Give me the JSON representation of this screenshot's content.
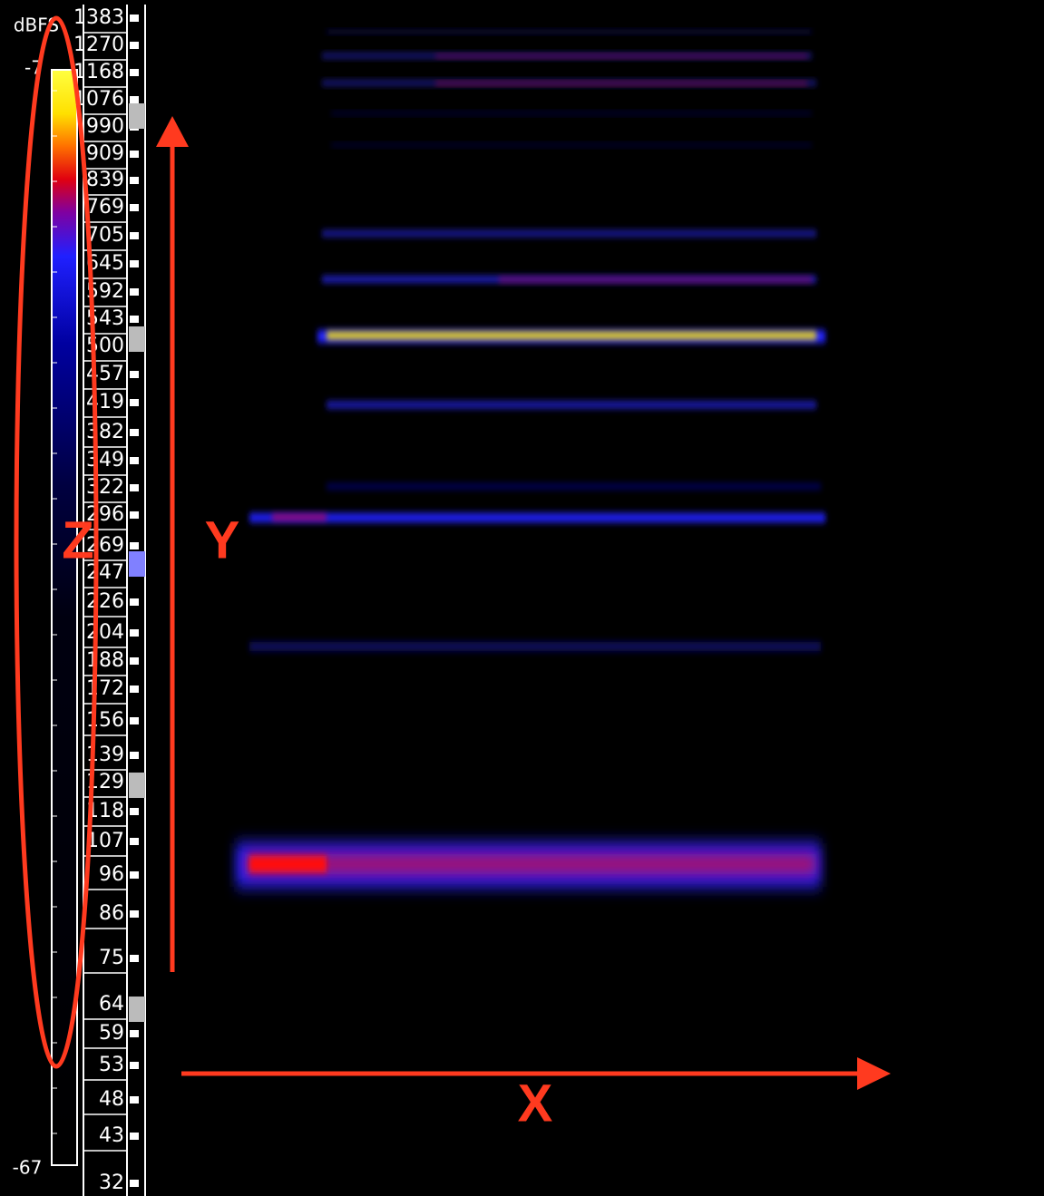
{
  "color_scale": {
    "unit": "dBFS",
    "top_label": "-7",
    "bottom_label": "-67"
  },
  "frequency_labels": [
    "1383",
    "1270",
    "1168",
    "1076",
    "990",
    "909",
    "839",
    "769",
    "705",
    "645",
    "592",
    "543",
    "500",
    "457",
    "419",
    "382",
    "349",
    "322",
    "296",
    "269",
    "247",
    "226",
    "204",
    "188",
    "172",
    "156",
    "139",
    "129",
    "118",
    "107",
    "96",
    "86",
    "75",
    "64",
    "59",
    "53",
    "48",
    "43",
    "32"
  ],
  "annotations": {
    "z_axis": "Z",
    "y_axis": "Y",
    "x_axis": "X"
  }
}
